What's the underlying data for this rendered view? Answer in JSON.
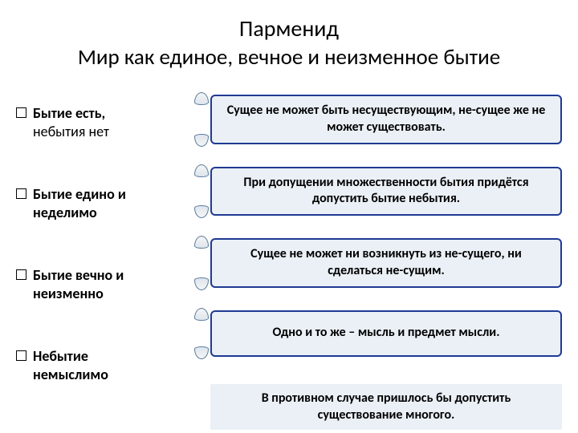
{
  "title": "Парменид",
  "subtitle": "Мир как единое, вечное и неизменное бытие",
  "bullets": [
    {
      "bold": "Бытие есть,",
      "rest": "небытия нет"
    },
    {
      "bold": "Бытие едино и неделимо",
      "rest": ""
    },
    {
      "bold": "Бытие вечно и неизменно",
      "rest": ""
    },
    {
      "bold": "Небытие немыслимо",
      "rest": ""
    }
  ],
  "boxes": [
    "Сущее не может быть несуществующим, не-сущее же не может существовать.",
    "При допущении множественности бытия придётся допустить бытие небытия.",
    "Сущее не может ни возникнуть из не-сущего, ни сделаться не-сущим.",
    "Одно и то же – мысль и предмет мысли."
  ],
  "footer": "В противном случае пришлось бы допустить существование многого.",
  "colors": {
    "box_bg": "#eaf0f6",
    "box_border": "#1f3a93",
    "page_bg": "#ffffff"
  }
}
